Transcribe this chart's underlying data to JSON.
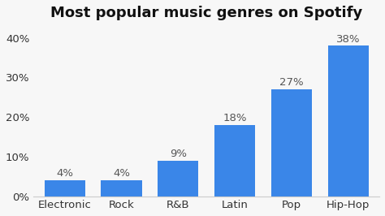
{
  "title": "Most popular music genres on Spotify",
  "categories": [
    "Electronic",
    "Rock",
    "R&B",
    "Latin",
    "Pop",
    "Hip-Hop"
  ],
  "values": [
    4,
    4,
    9,
    18,
    27,
    38
  ],
  "bar_color": "#3a86e8",
  "label_color": "#555555",
  "ylim": [
    0,
    43
  ],
  "yticks": [
    0,
    10,
    20,
    30,
    40
  ],
  "ytick_labels": [
    "0%",
    "10%",
    "20%",
    "30%",
    "40%"
  ],
  "title_fontsize": 13,
  "label_fontsize": 9.5,
  "xtick_fontsize": 9.5,
  "ytick_fontsize": 9.5,
  "bar_width": 0.72,
  "background_color": "#f7f7f7"
}
